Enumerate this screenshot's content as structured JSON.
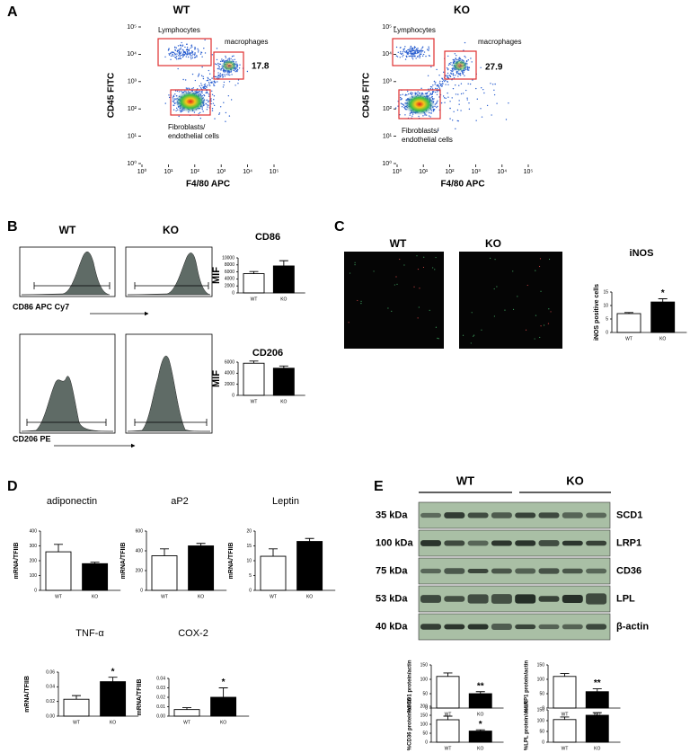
{
  "panel_labels": [
    "A",
    "B",
    "C",
    "D",
    "E"
  ],
  "flow_plots": [
    {
      "title": "WT",
      "xlabel": "F4/80 APC",
      "ylabel": "CD45 FITC",
      "gates": [
        "Lymphocytes",
        "macrophages"
      ],
      "fibro_label": [
        "Fibroblasts/",
        "endothelial cells"
      ],
      "macrophage_percent": 17.8,
      "log": true,
      "xlim": [
        1,
        100000
      ],
      "ylim": [
        1,
        100000
      ],
      "xticks": [
        {
          "value": 1,
          "label": "10⁰"
        },
        {
          "value": 10,
          "label": "10¹"
        },
        {
          "value": 100,
          "label": "10²"
        },
        {
          "value": 1000,
          "label": "10³"
        },
        {
          "value": 10000,
          "label": "10⁴"
        },
        {
          "value": 100000,
          "label": "10⁵"
        }
      ],
      "yticks": [
        {
          "value": 1,
          "label": "10⁰"
        },
        {
          "value": 10,
          "label": "10¹"
        },
        {
          "value": 100,
          "label": "10²"
        },
        {
          "value": 1000,
          "label": "10³"
        },
        {
          "value": 10000,
          "label": "10⁴"
        },
        {
          "value": 100000,
          "label": "10⁵"
        }
      ]
    },
    {
      "title": "KO",
      "xlabel": "F4/80 APC",
      "ylabel": "CD45 FITC",
      "gates": [
        "Lymphocytes",
        "macrophages"
      ],
      "fibro_label": [
        "Fibroblasts/",
        "endothelial cells"
      ],
      "macrophage_percent": 27.9,
      "log": true,
      "xlim": [
        1,
        100000
      ],
      "ylim": [
        1,
        100000
      ],
      "xticks": [
        {
          "value": 1,
          "label": "10⁰"
        },
        {
          "value": 10,
          "label": "10¹"
        },
        {
          "value": 100,
          "label": "10²"
        },
        {
          "value": 1000,
          "label": "10³"
        },
        {
          "value": 10000,
          "label": "10⁴"
        },
        {
          "value": 100000,
          "label": "10⁵"
        }
      ],
      "yticks": [
        {
          "value": 1,
          "label": "10⁰"
        },
        {
          "value": 10,
          "label": "10¹"
        },
        {
          "value": 100,
          "label": "10²"
        },
        {
          "value": 1000,
          "label": "10³"
        },
        {
          "value": 10000,
          "label": "10⁴"
        },
        {
          "value": 100000,
          "label": "10⁵"
        }
      ]
    }
  ],
  "histograms": {
    "titles": [
      "WT",
      "KO"
    ],
    "markers": [
      "CD86 APC Cy7",
      "CD206 PE"
    ]
  },
  "microscopy": {
    "titles": [
      "WT",
      "KO"
    ]
  },
  "blot": {
    "groups": [
      "WT",
      "KO"
    ],
    "sizes": [
      "35 kDa",
      "100 kDa",
      "75 kDa",
      "53 kDa",
      "40 kDa"
    ],
    "proteins": [
      "SCD1",
      "LRP1",
      "CD36",
      "LPL",
      "β-actin"
    ]
  },
  "chart_data": [
    {
      "type": "bar",
      "title": "CD86",
      "ylabel": "MIF",
      "categories": [
        "WT",
        "KO"
      ],
      "values": [
        5500,
        7700
      ],
      "errors": [
        600,
        1500
      ],
      "colors": [
        "#ffffff",
        "#000000"
      ],
      "ylim": [
        0,
        10000
      ],
      "yticks": [
        0,
        2000,
        4000,
        6000,
        8000,
        10000
      ]
    },
    {
      "type": "bar",
      "title": "CD206",
      "ylabel": "MIF",
      "categories": [
        "WT",
        "KO"
      ],
      "values": [
        5800,
        4900
      ],
      "errors": [
        400,
        400
      ],
      "colors": [
        "#ffffff",
        "#000000"
      ],
      "ylim": [
        0,
        6000
      ],
      "yticks": [
        0,
        2000,
        4000,
        6000
      ]
    },
    {
      "type": "bar",
      "title": "iNOS",
      "ylabel": "iNOS positive cells",
      "categories": [
        "WT",
        "KO"
      ],
      "values": [
        7,
        11.3
      ],
      "errors": [
        0.4,
        1.2
      ],
      "annotation": "*",
      "colors": [
        "#ffffff",
        "#000000"
      ],
      "ylim": [
        0,
        15
      ],
      "yticks": [
        0,
        5,
        10,
        15
      ]
    },
    {
      "type": "bar",
      "title": "adiponectin",
      "ylabel": "mRNA/TFIIB",
      "categories": [
        "WT",
        "KO"
      ],
      "values": [
        260,
        180
      ],
      "errors": [
        50,
        10
      ],
      "colors": [
        "#ffffff",
        "#000000"
      ],
      "ylim": [
        0,
        400
      ],
      "yticks": [
        0,
        100,
        200,
        300,
        400
      ]
    },
    {
      "type": "bar",
      "title": "aP2",
      "ylabel": "mRNA/TFIIB",
      "categories": [
        "WT",
        "KO"
      ],
      "values": [
        350,
        450
      ],
      "errors": [
        70,
        25
      ],
      "colors": [
        "#ffffff",
        "#000000"
      ],
      "ylim": [
        0,
        600
      ],
      "yticks": [
        0,
        200,
        400,
        600
      ]
    },
    {
      "type": "bar",
      "title": "Leptin",
      "ylabel": "mRNA/TFIIB",
      "categories": [
        "WT",
        "KO"
      ],
      "values": [
        11.5,
        16.5
      ],
      "errors": [
        2.5,
        1
      ],
      "colors": [
        "#ffffff",
        "#000000"
      ],
      "ylim": [
        0,
        20
      ],
      "yticks": [
        0,
        5,
        10,
        15,
        20
      ]
    },
    {
      "type": "bar",
      "title": "TNF-α",
      "ylabel": "mRNA/TFIIB",
      "categories": [
        "WT",
        "KO"
      ],
      "values": [
        0.023,
        0.047
      ],
      "errors": [
        0.005,
        0.006
      ],
      "annotation": "*",
      "colors": [
        "#ffffff",
        "#000000"
      ],
      "ylim": [
        0,
        0.06
      ],
      "yticks": [
        {
          "value": 0,
          "label": "0.00"
        },
        {
          "value": 0.02,
          "label": "0.02"
        },
        {
          "value": 0.04,
          "label": "0.04"
        },
        {
          "value": 0.06,
          "label": "0.06"
        }
      ]
    },
    {
      "type": "bar",
      "title": "COX-2",
      "ylabel": "mRNA/TFIIB",
      "categories": [
        "WT",
        "KO"
      ],
      "values": [
        0.007,
        0.02
      ],
      "errors": [
        0.002,
        0.01
      ],
      "annotation": "*",
      "colors": [
        "#ffffff",
        "#000000"
      ],
      "ylim": [
        0,
        0.04
      ],
      "yticks": [
        {
          "value": 0,
          "label": "0.00"
        },
        0.01,
        0.02,
        0.03,
        0.04
      ]
    },
    {
      "type": "bar",
      "ylabel": "%SCD1 protein/actin",
      "categories": [
        "WT",
        "KO"
      ],
      "values": [
        110,
        50
      ],
      "errors": [
        12,
        7
      ],
      "annotation": "**",
      "colors": [
        "#ffffff",
        "#000000"
      ],
      "ylim": [
        0,
        150
      ],
      "yticks": [
        0,
        50,
        100,
        150
      ]
    },
    {
      "type": "bar",
      "ylabel": "%LRP1 protein/actin",
      "categories": [
        "WT",
        "KO"
      ],
      "values": [
        110,
        57
      ],
      "errors": [
        10,
        10
      ],
      "annotation": "**",
      "colors": [
        "#ffffff",
        "#000000"
      ],
      "ylim": [
        0,
        150
      ],
      "yticks": [
        0,
        50,
        100,
        150
      ]
    },
    {
      "type": "bar",
      "ylabel": "%CD36 protein/actin",
      "categories": [
        "WT",
        "KO"
      ],
      "values": [
        125,
        62
      ],
      "errors": [
        20,
        7
      ],
      "annotation": "*",
      "colors": [
        "#ffffff",
        "#000000"
      ],
      "ylim": [
        0,
        200
      ],
      "yticks": [
        0,
        50,
        100,
        150,
        200
      ]
    },
    {
      "type": "bar",
      "ylabel": "%LPL protein/actin",
      "categories": [
        "WT",
        "KO"
      ],
      "values": [
        105,
        125
      ],
      "errors": [
        12,
        12
      ],
      "colors": [
        "#ffffff",
        "#000000"
      ],
      "ylim": [
        0,
        150
      ],
      "yticks": [
        0,
        50,
        100,
        150
      ]
    }
  ]
}
